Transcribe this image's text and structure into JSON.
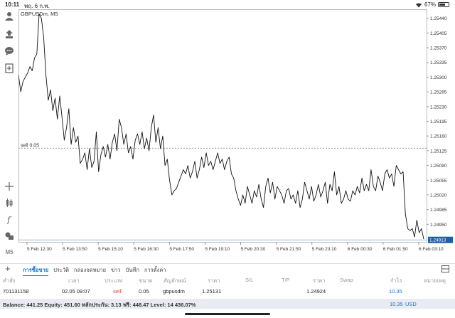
{
  "status": {
    "time": "10:11",
    "date": "พฤ. 6 ก.พ.",
    "battery": "67%",
    "battery_level": 0.67
  },
  "chart_data": {
    "type": "line",
    "title": "GBPUSDm, M5",
    "x_ticks": [
      "5 Feb 12:30",
      "5 Feb 13:50",
      "5 Feb 15:10",
      "5 Feb 16:30",
      "5 Feb 17:50",
      "5 Feb 19:10",
      "5 Feb 20:30",
      "5 Feb 21:50",
      "5 Feb 23:10",
      "6 Feb 00:30",
      "6 Feb 01:50",
      "6 Feb 03:10"
    ],
    "y_ticks": [
      "1.25440",
      "1.25405",
      "1.25370",
      "1.25335",
      "1.25300",
      "1.25265",
      "1.25230",
      "1.25195",
      "1.25160",
      "1.25125",
      "1.25090",
      "1.25055",
      "1.25020",
      "1.24985",
      "1.24950"
    ],
    "y_range": [
      1.2491,
      1.25458
    ],
    "current_price": "1.24913",
    "current_price_value": 1.24913,
    "order_line": {
      "label": "sell 0.05",
      "price": 1.25131
    },
    "y_values": [
      1.25305,
      1.25265,
      1.2529,
      1.253,
      1.2531,
      1.25325,
      1.25315,
      1.25345,
      1.25355,
      1.2545,
      1.2544,
      1.25395,
      1.25305,
      1.25245,
      1.2527,
      1.2522,
      1.2525,
      1.252,
      1.25255,
      1.25205,
      1.2515,
      1.2518,
      1.25225,
      1.2514,
      1.2518,
      1.25145,
      1.2516,
      1.25095,
      1.25105,
      1.2512,
      1.2508,
      1.2513,
      1.25085,
      1.251,
      1.2517,
      1.25075,
      1.25115,
      1.25135,
      1.2511,
      1.2514,
      1.25105,
      1.25145,
      1.25165,
      1.25125,
      1.252,
      1.2518,
      1.2514,
      1.25165,
      1.2512,
      1.25135,
      1.25105,
      1.2515,
      1.25165,
      1.2514,
      1.2517,
      1.2513,
      1.25155,
      1.25125,
      1.2518,
      1.2521,
      1.25145,
      1.2518,
      1.2513,
      1.2516,
      1.2509,
      1.25105,
      1.25055,
      1.2502,
      1.2503,
      1.25035,
      1.2505,
      1.25065,
      1.2508,
      1.2507,
      1.2509,
      1.2506,
      1.25075,
      1.251,
      1.2506,
      1.2508,
      1.2511,
      1.25085,
      1.2512,
      1.2509,
      1.251,
      1.2508,
      1.251,
      1.2512,
      1.25095,
      1.25105,
      1.2508,
      1.251,
      1.2511,
      1.2507,
      1.2506,
      1.2503,
      1.2501,
      1.24995,
      1.2502,
      1.25,
      1.2504,
      1.2502,
      1.25,
      1.2503,
      1.25015,
      1.25045,
      1.2501,
      1.2499,
      1.2504,
      1.2506,
      1.25025,
      1.2505,
      1.2501,
      1.2504,
      1.2503,
      1.2502,
      1.25,
      1.2503,
      1.25035,
      1.2501,
      1.2502,
      1.25,
      1.2503,
      1.2499,
      1.2501,
      1.2505,
      1.2503,
      1.2501,
      1.2504,
      1.25005,
      1.2502,
      1.25045,
      1.25015,
      1.2503,
      1.2505,
      1.25,
      1.25045,
      1.2503,
      1.25075,
      1.2502,
      1.2504,
      1.25,
      1.2501,
      1.2503,
      1.2501,
      1.25005,
      1.2503,
      1.2502,
      1.2504,
      1.25025,
      1.2506,
      1.2503,
      1.25045,
      1.2503,
      1.2508,
      1.2504,
      1.2503,
      1.25065,
      1.2505,
      1.2503,
      1.2507,
      1.2508,
      1.2506,
      1.2507,
      1.2504,
      1.2509,
      1.2508,
      1.2507,
      1.25075,
      1.24975,
      1.2494,
      1.24935,
      1.2494,
      1.2492,
      1.2496,
      1.2493,
      1.2494,
      1.24915
    ]
  },
  "toolbar": {
    "m5": "M5"
  },
  "tabs": [
    "การซื้อขาย",
    "ประวัติ",
    "กล่องจดหมาย",
    "ข่าว",
    "บันทึก",
    "การตั้งค่า"
  ],
  "table": {
    "headers": [
      "คำสั่ง",
      "เวลา",
      "ประเภท",
      "ขนาด",
      "สัญลักษณ์",
      "ราคา",
      "S/L",
      "T/P",
      "ราคา",
      "Swap",
      "กำไร",
      "หมายเหตุ"
    ],
    "row": {
      "order": "701131158",
      "time": "02.05 09:07",
      "type": "sell",
      "size": "0.05",
      "symbol": "gbpusdm",
      "open_price": "1.25131",
      "sl": "",
      "tp": "",
      "price": "1.24924",
      "swap": "",
      "profit": "10.35",
      "comment": ""
    }
  },
  "balance": {
    "text": "Balance: 441.25 Equity: 451.60 หลักประกัน: 3.13 ฟรี: 448.47 Level: 14 436.07%",
    "value": "10.35",
    "currency": "USD"
  },
  "colors": {
    "accent": "#1a73c9",
    "sell": "#e0433a",
    "line": "#111111"
  }
}
